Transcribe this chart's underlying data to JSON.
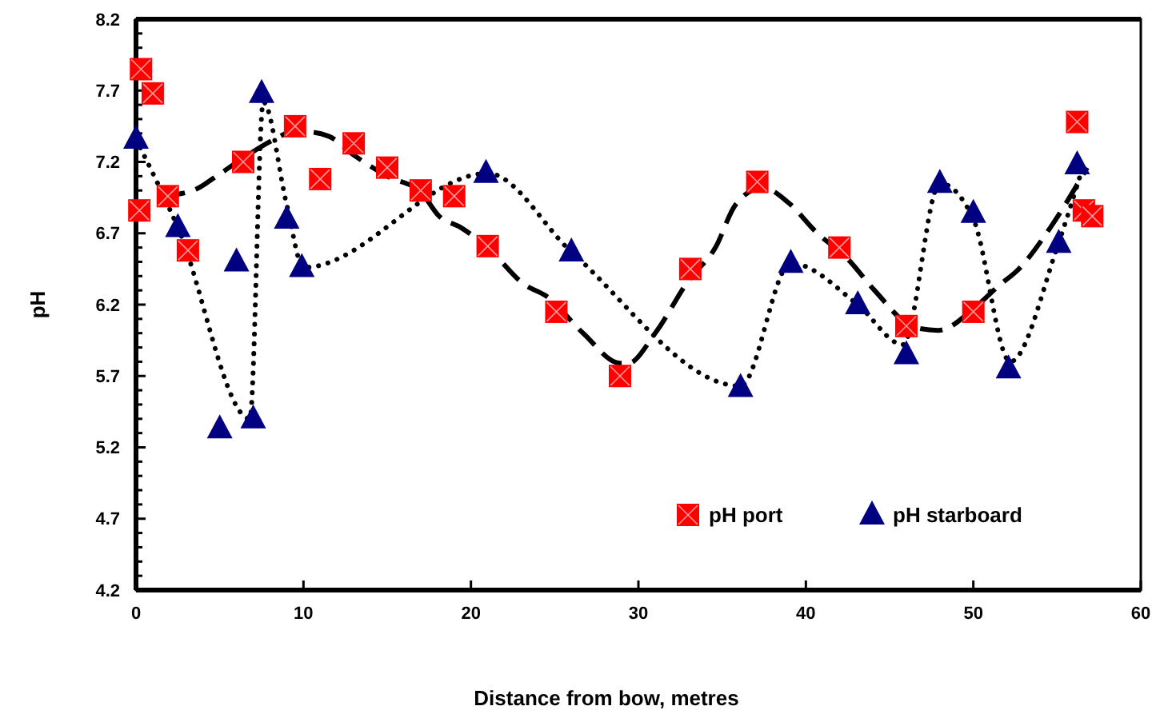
{
  "chart_data": {
    "type": "scatter",
    "xlabel": "Distance from bow, metres",
    "ylabel": "pH",
    "xlim": [
      0,
      60
    ],
    "xticks": [
      0,
      10,
      20,
      30,
      40,
      50,
      60
    ],
    "ylim": [
      4.2,
      8.2
    ],
    "yticks": [
      4.2,
      4.7,
      5.2,
      5.7,
      6.2,
      6.7,
      7.2,
      7.7,
      8.2
    ],
    "grid": false,
    "legend": "bottom right",
    "series": [
      {
        "name": "pH port",
        "color": "#ff0000",
        "marker": "square",
        "x": [
          0.3,
          1,
          0.2,
          1.9,
          3.1,
          6.4,
          9.5,
          11,
          13,
          15,
          17,
          19,
          21,
          25.1,
          28.9,
          33.1,
          37.1,
          42,
          46,
          50,
          56.2,
          56.6,
          57.1
        ],
        "values": [
          7.85,
          7.68,
          6.86,
          6.96,
          6.58,
          7.2,
          7.45,
          7.08,
          7.33,
          7.16,
          7.0,
          6.96,
          6.61,
          6.15,
          5.7,
          6.45,
          7.06,
          6.6,
          6.05,
          6.15,
          7.48,
          6.86,
          6.82
        ]
      },
      {
        "name": "pH starboard",
        "color": "#000080",
        "marker": "triangle",
        "x": [
          0,
          2.5,
          5,
          6,
          7,
          7.5,
          9,
          9.9,
          20.9,
          26,
          36.1,
          39.1,
          43.1,
          46,
          48,
          50,
          52.1,
          55.1,
          56.2
        ],
        "values": [
          7.36,
          6.74,
          5.33,
          6.5,
          5.4,
          7.68,
          6.8,
          6.46,
          7.12,
          6.57,
          5.62,
          6.49,
          6.2,
          5.85,
          7.05,
          6.84,
          5.75,
          6.63,
          7.18
        ]
      },
      {
        "type": "line",
        "color": "#000000",
        "line_style": "dashed",
        "marker": "none",
        "x": [
          1.6,
          3.6,
          4.8,
          6.7,
          8.3,
          9.3,
          10.2,
          11.5,
          13.1,
          15,
          17,
          18.1,
          19.4,
          21,
          23.2,
          24.5,
          26.7,
          28.9,
          29.4,
          31,
          33,
          34.6,
          35.8,
          37.4,
          39,
          40.6,
          42.5,
          44.1,
          46.5,
          47.9,
          50.1,
          51.4,
          52.8,
          54.6,
          56.8
        ],
        "values": [
          6.96,
          7.01,
          7.1,
          7.25,
          7.36,
          7.41,
          7.41,
          7.38,
          7.24,
          7.1,
          6.99,
          6.82,
          6.74,
          6.6,
          6.34,
          6.26,
          6.0,
          5.79,
          5.79,
          6.0,
          6.37,
          6.6,
          6.9,
          7.02,
          6.91,
          6.71,
          6.52,
          6.3,
          6.04,
          6.02,
          6.18,
          6.32,
          6.46,
          6.74,
          7.16
        ]
      },
      {
        "type": "line",
        "color": "#000000",
        "line_style": "dotted",
        "marker": "none",
        "x": [
          0,
          2.5,
          6.8,
          7.6,
          9,
          10,
          21,
          26,
          36.1,
          39.1,
          43.1,
          45.8,
          48,
          50,
          52.2,
          55,
          56.5
        ],
        "values": [
          7.36,
          6.74,
          5.4,
          7.62,
          6.9,
          6.46,
          7.12,
          6.57,
          5.63,
          6.49,
          6.2,
          5.92,
          7.05,
          6.8,
          5.8,
          6.6,
          7.15
        ]
      }
    ]
  }
}
